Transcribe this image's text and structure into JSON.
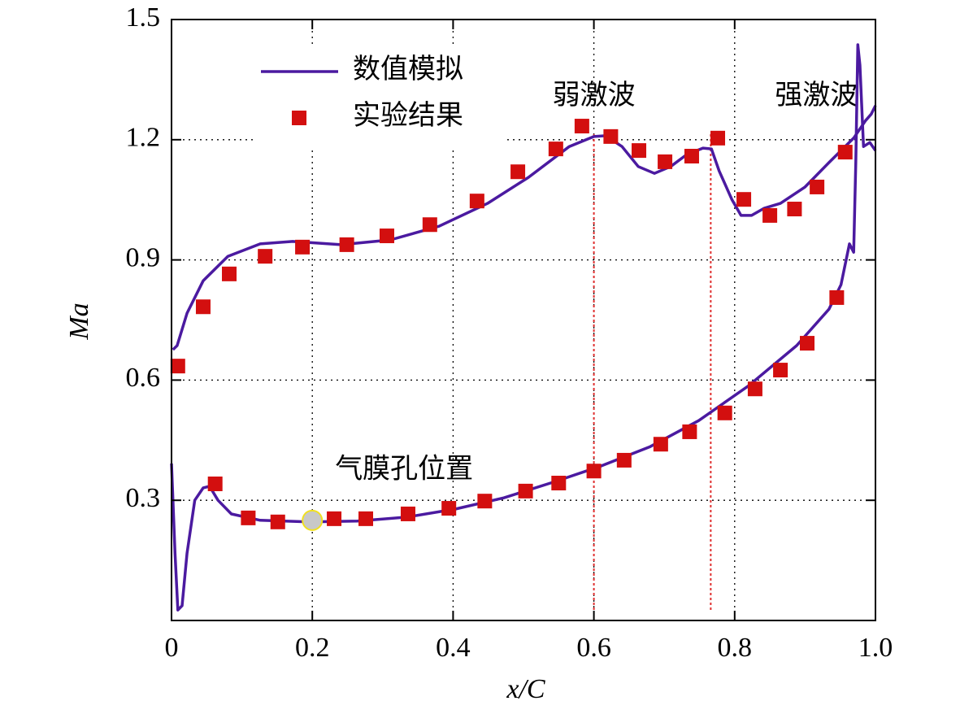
{
  "chart_data": {
    "type": "line",
    "xlabel": "x/C",
    "ylabel": "Ma",
    "xlim": [
      0,
      1
    ],
    "ylim": [
      0,
      1.5
    ],
    "xticks": [
      0,
      0.2,
      0.4,
      0.6,
      0.8,
      {
        "value": 1,
        "label": "1.0"
      }
    ],
    "yticks": [
      0.3,
      0.6,
      0.9,
      1.2,
      1.5
    ],
    "grid": true,
    "legend": "top-left",
    "series": [
      {
        "name": "数值模拟",
        "type": "line",
        "color": "#4b1aa0",
        "curves": [
          {
            "x": [
              0.002,
              0.008,
              0.022,
              0.045,
              0.08,
              0.126,
              0.172,
              0.241,
              0.311,
              0.38,
              0.449,
              0.507,
              0.565,
              0.6,
              0.617,
              0.64,
              0.663,
              0.686,
              0.709,
              0.732,
              0.755,
              0.767,
              0.778,
              0.796,
              0.809,
              0.824,
              0.842,
              0.865,
              0.9,
              0.934,
              0.969,
              0.986,
              0.994,
              1
            ],
            "values": [
              0.676,
              0.686,
              0.767,
              0.848,
              0.909,
              0.94,
              0.946,
              0.938,
              0.95,
              0.984,
              1.041,
              1.106,
              1.183,
              1.208,
              1.21,
              1.183,
              1.133,
              1.116,
              1.133,
              1.163,
              1.179,
              1.177,
              1.122,
              1.051,
              1.011,
              1.011,
              1.029,
              1.041,
              1.082,
              1.143,
              1.204,
              1.248,
              1.264,
              1.285
            ]
          },
          {
            "x": [
              0,
              0.005,
              0.009,
              0.015,
              0.022,
              0.033,
              0.045,
              0.054,
              0.066,
              0.085,
              0.126,
              0.195,
              0.264,
              0.334,
              0.403,
              0.472,
              0.542,
              0.611,
              0.68,
              0.749,
              0.819,
              0.888,
              0.934,
              0.951,
              0.963,
              0.969,
              0.972,
              0.975,
              0.978,
              0.983,
              0.992,
              1
            ],
            "values": [
              0.392,
              0.168,
              0.026,
              0.037,
              0.168,
              0.3,
              0.331,
              0.335,
              0.3,
              0.266,
              0.25,
              0.246,
              0.248,
              0.258,
              0.278,
              0.306,
              0.345,
              0.386,
              0.434,
              0.499,
              0.585,
              0.686,
              0.777,
              0.838,
              0.94,
              0.919,
              1.143,
              1.437,
              1.386,
              1.183,
              1.193,
              1.173
            ]
          }
        ]
      },
      {
        "name": "实验结果",
        "type": "scatter",
        "color": "#d30f0f",
        "x": [
          0.009,
          0.045,
          0.082,
          0.133,
          0.186,
          0.249,
          0.306,
          0.367,
          0.434,
          0.492,
          0.546,
          0.583,
          0.624,
          0.664,
          0.701,
          0.739,
          0.776,
          0.813,
          0.85,
          0.885,
          0.917,
          0.957,
          0.062,
          0.109,
          0.151,
          0.231,
          0.276,
          0.336,
          0.394,
          0.445,
          0.503,
          0.55,
          0.6,
          0.643,
          0.695,
          0.736,
          0.786,
          0.829,
          0.865,
          0.903,
          0.945
        ],
        "values": [
          0.635,
          0.783,
          0.865,
          0.909,
          0.932,
          0.938,
          0.96,
          0.988,
          1.047,
          1.12,
          1.177,
          1.234,
          1.208,
          1.173,
          1.145,
          1.159,
          1.204,
          1.051,
          1.011,
          1.027,
          1.082,
          1.169,
          0.341,
          0.256,
          0.246,
          0.254,
          0.254,
          0.266,
          0.28,
          0.298,
          0.323,
          0.343,
          0.373,
          0.4,
          0.44,
          0.471,
          0.518,
          0.578,
          0.625,
          0.692,
          0.806
        ]
      }
    ],
    "annotations": [
      {
        "text": "弱激波",
        "x": 0.6,
        "color": "#e03030"
      },
      {
        "text": "强激波",
        "x": 0.766,
        "color": "#e03030"
      }
    ],
    "film_hole": {
      "label": "气膜孔位置",
      "x": 0.2,
      "y": 0.25,
      "color": "#c8c8c8"
    }
  }
}
